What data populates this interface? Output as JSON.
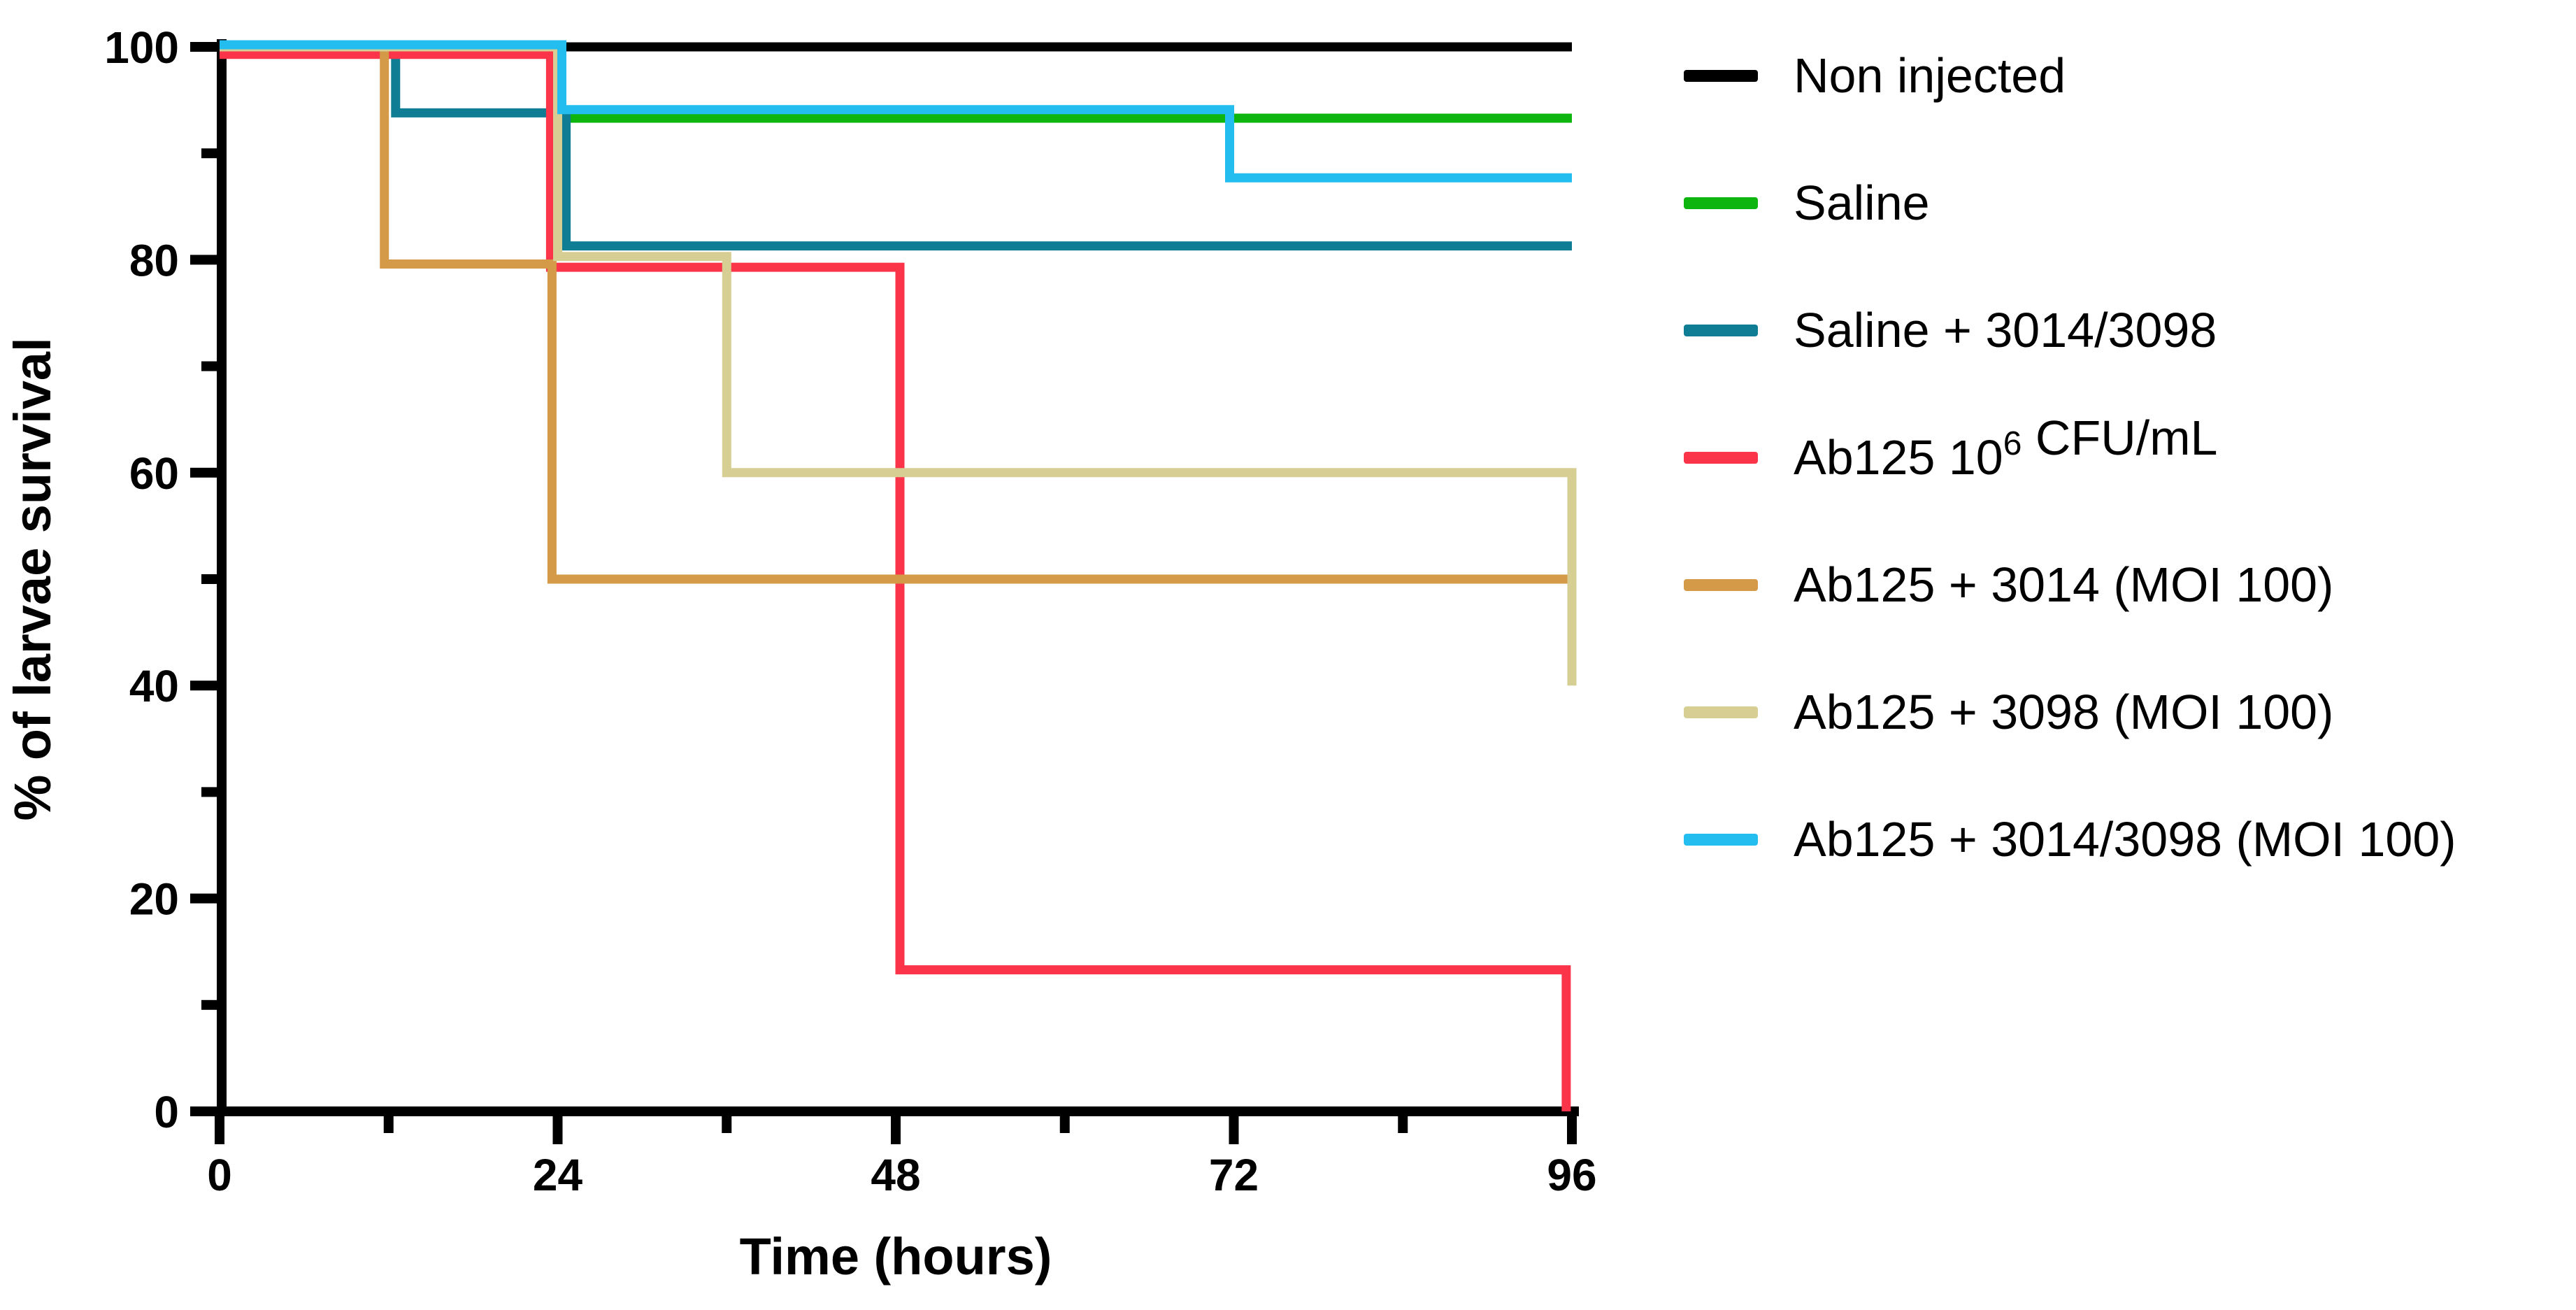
{
  "figure": {
    "background_color": "#ffffff",
    "axis_color": "#000000"
  },
  "chart_data": {
    "type": "line",
    "subtype": "kaplan-meier-survival-step",
    "title": "",
    "xlabel": "Time (hours)",
    "ylabel": "% of larvae survival",
    "xlim": [
      0,
      96
    ],
    "ylim": [
      0,
      100
    ],
    "grid": "off",
    "legend_position": "right",
    "x_major_ticks": [
      0,
      24,
      48,
      72,
      96
    ],
    "x_minor_ticks": [
      12,
      36,
      60,
      84
    ],
    "x_tick_labels": [
      "0",
      "24",
      "48",
      "72",
      "96"
    ],
    "y_major_ticks": [
      0,
      20,
      40,
      60,
      80,
      100
    ],
    "y_minor_ticks": [
      10,
      30,
      50,
      70,
      90
    ],
    "y_tick_labels": [
      "0",
      "20",
      "40",
      "60",
      "80",
      "100"
    ],
    "series": [
      {
        "name": "Non injected",
        "color": "#000000",
        "steps": [
          [
            0,
            100
          ],
          [
            96,
            100
          ]
        ],
        "draw_points": [
          [
            0,
            100
          ],
          [
            96,
            100
          ]
        ]
      },
      {
        "name": "Saline",
        "color": "#0EB50E",
        "steps": [
          [
            0,
            100
          ],
          [
            24,
            93.3
          ],
          [
            96,
            93.3
          ]
        ],
        "draw_points": [
          [
            0,
            100
          ],
          [
            24,
            93.3
          ],
          [
            96,
            93.3
          ]
        ]
      },
      {
        "name": "Saline + 3014/3098",
        "color": "#0F7E95",
        "steps": [
          [
            0,
            100
          ],
          [
            12,
            93.8
          ],
          [
            24,
            81.3
          ],
          [
            96,
            81.3
          ]
        ],
        "draw_points": [
          [
            0,
            100
          ],
          [
            12.5,
            93.8
          ],
          [
            24.6,
            81.3
          ],
          [
            96,
            81.3
          ]
        ]
      },
      {
        "name": "Ab125 10^6 CFU/mL",
        "label_parts": [
          {
            "text": "Ab125 10"
          },
          {
            "text": "6",
            "sup": true
          },
          {
            "text": " CFU/mL"
          }
        ],
        "color": "#FB3449",
        "steps": [
          [
            0,
            100
          ],
          [
            24,
            80
          ],
          [
            48,
            13.3
          ],
          [
            96,
            0
          ]
        ],
        "draw_points": [
          [
            0,
            99.3
          ],
          [
            23.5,
            79.3
          ],
          [
            48.3,
            13.3
          ],
          [
            95.6,
            0
          ]
        ]
      },
      {
        "name": "Ab125 + 3014 (MOI 100)",
        "color": "#D59A48",
        "steps": [
          [
            0,
            100
          ],
          [
            12,
            80
          ],
          [
            24,
            50
          ],
          [
            96,
            50
          ]
        ],
        "draw_points": [
          [
            0,
            100
          ],
          [
            11.7,
            79.6
          ],
          [
            23.6,
            50
          ],
          [
            96,
            50
          ]
        ]
      },
      {
        "name": "Ab125 + 3098 (MOI 100)",
        "color": "#D6CE92",
        "steps": [
          [
            0,
            100
          ],
          [
            24,
            80
          ],
          [
            36,
            60
          ],
          [
            96,
            40
          ]
        ],
        "draw_points": [
          [
            0,
            100
          ],
          [
            24,
            80.3
          ],
          [
            36,
            60
          ],
          [
            96,
            40
          ]
        ]
      },
      {
        "name": "Ab125 + 3014/3098 (MOI 100)",
        "color": "#24BDEF",
        "steps": [
          [
            0,
            100
          ],
          [
            24,
            93.8
          ],
          [
            72,
            87.5
          ],
          [
            96,
            87.5
          ]
        ],
        "draw_points": [
          [
            0,
            100.2
          ],
          [
            24.3,
            94.1
          ],
          [
            71.7,
            87.7
          ],
          [
            96,
            87.7
          ]
        ]
      }
    ]
  }
}
